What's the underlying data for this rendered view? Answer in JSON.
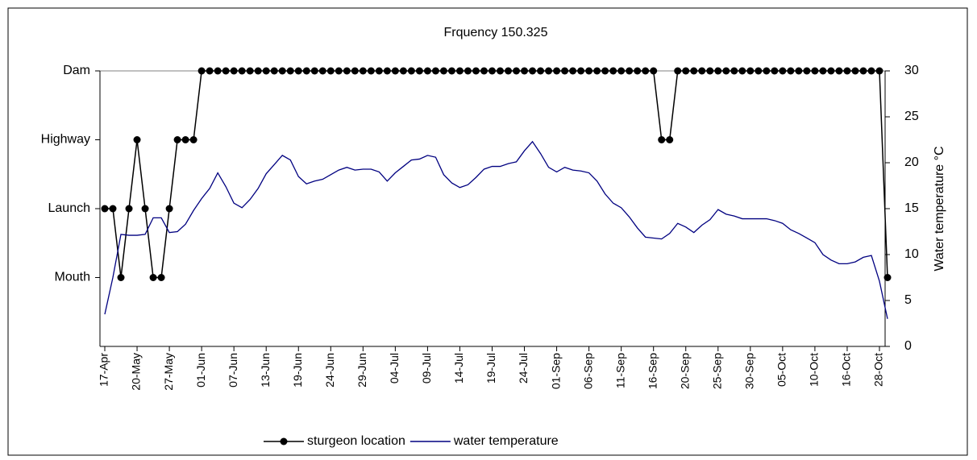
{
  "chart_data": {
    "type": "line",
    "title": "Frquency 150.325",
    "y2label": "Water temperature °C",
    "categories": [
      "17-Apr",
      null,
      null,
      null,
      "20-May",
      null,
      null,
      null,
      "27-May",
      null,
      null,
      null,
      "01-Jun",
      null,
      null,
      null,
      "07-Jun",
      null,
      null,
      null,
      "13-Jun",
      null,
      null,
      null,
      "19-Jun",
      null,
      null,
      null,
      "24-Jun",
      null,
      null,
      null,
      "29-Jun",
      null,
      null,
      null,
      "04-Jul",
      null,
      null,
      null,
      "09-Jul",
      null,
      null,
      null,
      "14-Jul",
      null,
      null,
      null,
      "19-Jul",
      null,
      null,
      null,
      "24-Jul",
      null,
      null,
      null,
      "01-Sep",
      null,
      null,
      null,
      "06-Sep",
      null,
      null,
      null,
      "11-Sep",
      null,
      null,
      null,
      "16-Sep",
      null,
      null,
      null,
      "20-Sep",
      null,
      null,
      null,
      "25-Sep",
      null,
      null,
      null,
      "30-Sep",
      null,
      null,
      null,
      "05-Oct",
      null,
      null,
      null,
      "10-Oct",
      null,
      null,
      null,
      "16-Oct",
      null,
      null,
      null,
      "28-Oct",
      null
    ],
    "series": [
      {
        "name": "sturgeon location",
        "color": "#000000",
        "axis": "y",
        "markers": true,
        "values": [
          2,
          2,
          1,
          2,
          3,
          2,
          1,
          1,
          2,
          3,
          3,
          3,
          4,
          4,
          4,
          4,
          4,
          4,
          4,
          4,
          4,
          4,
          4,
          4,
          4,
          4,
          4,
          4,
          4,
          4,
          4,
          4,
          4,
          4,
          4,
          4,
          4,
          4,
          4,
          4,
          4,
          4,
          4,
          4,
          4,
          4,
          4,
          4,
          4,
          4,
          4,
          4,
          4,
          4,
          4,
          4,
          4,
          4,
          4,
          4,
          4,
          4,
          4,
          4,
          4,
          4,
          4,
          4,
          4,
          3,
          3,
          4,
          4,
          4,
          4,
          4,
          4,
          4,
          4,
          4,
          4,
          4,
          4,
          4,
          4,
          4,
          4,
          4,
          4,
          4,
          4,
          4,
          4,
          4,
          4,
          4,
          4,
          1
        ]
      },
      {
        "name": "water temperature",
        "color": "#000080",
        "axis": "y2",
        "markers": false,
        "values": [
          3.5,
          7.5,
          12.2,
          12.1,
          12.1,
          12.2,
          14,
          14,
          12.4,
          12.5,
          13.3,
          14.8,
          16.1,
          17.2,
          18.9,
          17.4,
          15.6,
          15.1,
          16,
          17.2,
          18.8,
          19.8,
          20.8,
          20.3,
          18.5,
          17.7,
          18,
          18.2,
          18.7,
          19.2,
          19.5,
          19.2,
          19.3,
          19.3,
          19,
          18,
          18.9,
          19.6,
          20.3,
          20.4,
          20.8,
          20.6,
          18.7,
          17.8,
          17.3,
          17.6,
          18.4,
          19.3,
          19.6,
          19.6,
          19.9,
          20.1,
          21.3,
          22.3,
          21,
          19.5,
          19,
          19.5,
          19.2,
          19.1,
          18.9,
          18,
          16.6,
          15.6,
          15.1,
          14.1,
          12.9,
          11.9,
          11.8,
          11.7,
          12.3,
          13.4,
          13,
          12.4,
          13.2,
          13.8,
          14.9,
          14.4,
          14.2,
          13.9,
          13.9,
          13.9,
          13.9,
          13.7,
          13.4,
          12.7,
          12.3,
          11.8,
          11.3,
          10,
          9.4,
          9,
          9,
          9.2,
          9.7,
          9.9,
          7.1,
          3
        ]
      }
    ],
    "ylim": [
      0,
      4
    ],
    "yticks": [
      {
        "value": 1,
        "label": "Mouth"
      },
      {
        "value": 2,
        "label": "Launch"
      },
      {
        "value": 3,
        "label": "Highway"
      },
      {
        "value": 4,
        "label": "Dam"
      }
    ],
    "y2lim": [
      0,
      30
    ],
    "y2ticks": [
      0,
      5,
      10,
      15,
      20,
      25,
      30
    ],
    "legend": "bottom"
  }
}
